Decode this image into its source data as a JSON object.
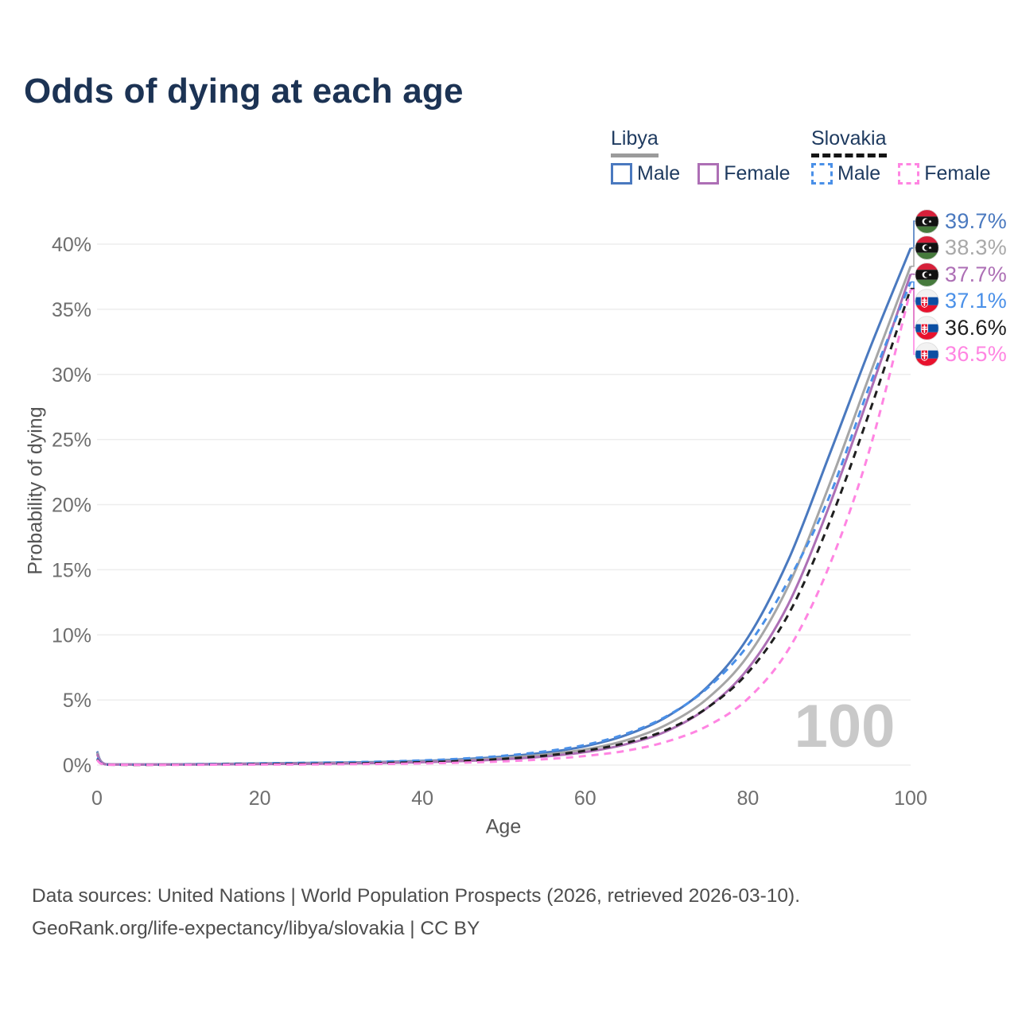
{
  "title": "Odds of dying at each age",
  "legend": {
    "groups": [
      {
        "name": "Libya",
        "line_style": "solid",
        "underline_color": "#9b9b9b",
        "items": [
          {
            "label": "Male",
            "color": "#4a79bf"
          },
          {
            "label": "Female",
            "color": "#ad6fb5"
          }
        ]
      },
      {
        "name": "Slovakia",
        "line_style": "dashed",
        "underline_color": "#151515",
        "items": [
          {
            "label": "Male",
            "color": "#4a90e8"
          },
          {
            "label": "Female",
            "color": "#ff85e2"
          }
        ]
      }
    ]
  },
  "watermark": "100",
  "footer": {
    "line1": "Data sources: United Nations | World Population Prospects (2026, retrieved 2026-03-10).",
    "line2": "GeoRank.org/life-expectancy/libya/slovakia | CC BY"
  },
  "chart_data": {
    "type": "line",
    "title": "Odds of dying at each age",
    "xlabel": "Age",
    "ylabel": "Probability of dying",
    "xlim": [
      0,
      100
    ],
    "ylim": [
      0,
      40
    ],
    "x_ticks": [
      0,
      20,
      40,
      60,
      80,
      100
    ],
    "y_ticks": [
      0,
      5,
      10,
      15,
      20,
      25,
      30,
      35,
      40
    ],
    "y_tick_suffix": "%",
    "grid": "horizontal",
    "legend_position": "top-right",
    "x": [
      0,
      1,
      5,
      10,
      15,
      20,
      25,
      30,
      35,
      40,
      45,
      50,
      55,
      60,
      65,
      70,
      75,
      80,
      85,
      90,
      95,
      100
    ],
    "series": [
      {
        "name": "Libya Male",
        "country": "Libya",
        "sex": "Male",
        "color": "#4a79bf",
        "dash": "solid",
        "values": [
          1.05,
          0.08,
          0.05,
          0.06,
          0.09,
          0.13,
          0.16,
          0.19,
          0.24,
          0.32,
          0.45,
          0.65,
          0.95,
          1.45,
          2.3,
          3.7,
          6.0,
          9.8,
          15.8,
          23.8,
          32.0,
          39.7
        ]
      },
      {
        "name": "Libya Both sexes",
        "country": "Libya",
        "sex": "Both",
        "color": "#a6a6a6",
        "dash": "solid",
        "values": [
          0.95,
          0.07,
          0.04,
          0.05,
          0.08,
          0.11,
          0.13,
          0.16,
          0.2,
          0.27,
          0.38,
          0.55,
          0.8,
          1.2,
          1.9,
          3.1,
          5.1,
          8.4,
          13.8,
          21.5,
          30.0,
          38.3
        ]
      },
      {
        "name": "Libya Female",
        "country": "Libya",
        "sex": "Female",
        "color": "#ad6fb5",
        "dash": "solid",
        "values": [
          0.85,
          0.06,
          0.04,
          0.04,
          0.06,
          0.08,
          0.1,
          0.12,
          0.16,
          0.22,
          0.31,
          0.45,
          0.66,
          1.0,
          1.6,
          2.6,
          4.4,
          7.4,
          12.4,
          19.9,
          28.6,
          37.7
        ]
      },
      {
        "name": "Slovakia Male",
        "country": "Slovakia",
        "sex": "Male",
        "color": "#4a90e8",
        "dash": "dashed",
        "values": [
          0.55,
          0.04,
          0.03,
          0.04,
          0.08,
          0.13,
          0.17,
          0.21,
          0.27,
          0.36,
          0.5,
          0.72,
          1.05,
          1.55,
          2.4,
          3.75,
          5.9,
          9.2,
          14.2,
          20.6,
          29.2,
          37.1
        ]
      },
      {
        "name": "Slovakia Both sexes",
        "country": "Slovakia",
        "sex": "Both",
        "color": "#1f1f1f",
        "dash": "dashed",
        "values": [
          0.45,
          0.03,
          0.02,
          0.03,
          0.05,
          0.08,
          0.1,
          0.12,
          0.16,
          0.22,
          0.32,
          0.48,
          0.72,
          1.1,
          1.7,
          2.7,
          4.4,
          7.1,
          11.6,
          18.6,
          27.2,
          36.6
        ]
      },
      {
        "name": "Slovakia Female",
        "country": "Slovakia",
        "sex": "Female",
        "color": "#ff85e2",
        "dash": "dashed",
        "values": [
          0.4,
          0.03,
          0.02,
          0.02,
          0.03,
          0.04,
          0.05,
          0.07,
          0.09,
          0.13,
          0.19,
          0.29,
          0.45,
          0.7,
          1.1,
          1.8,
          3.0,
          5.1,
          8.9,
          15.3,
          24.3,
          36.5
        ]
      }
    ]
  },
  "end_labels": [
    {
      "value": "39.7%",
      "line_value": 39.7,
      "flag": "libya",
      "color": "#4a79bf"
    },
    {
      "value": "38.3%",
      "line_value": 38.3,
      "flag": "libya",
      "color": "#a8a8a8"
    },
    {
      "value": "37.7%",
      "line_value": 37.7,
      "flag": "libya",
      "color": "#ad6fb5"
    },
    {
      "value": "37.1%",
      "line_value": 37.1,
      "flag": "slovakia",
      "color": "#4a90e8"
    },
    {
      "value": "36.6%",
      "line_value": 36.6,
      "flag": "slovakia",
      "color": "#1f1f1f"
    },
    {
      "value": "36.5%",
      "line_value": 36.5,
      "flag": "slovakia",
      "color": "#ff85e2"
    }
  ]
}
